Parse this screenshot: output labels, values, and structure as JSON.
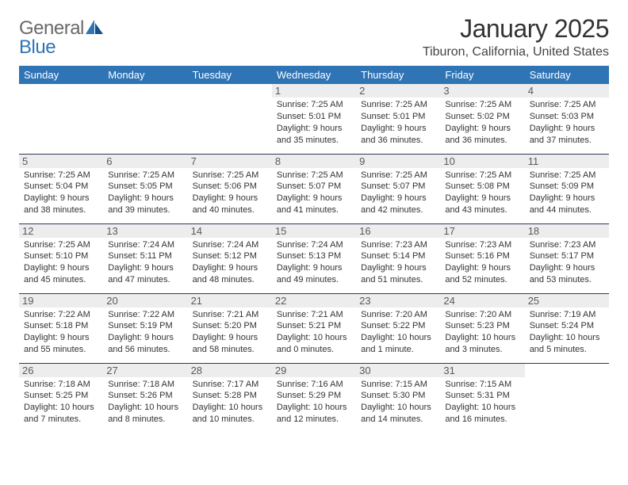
{
  "logo": {
    "word1": "General",
    "word2": "Blue"
  },
  "title": "January 2025",
  "location": "Tiburon, California, United States",
  "colors": {
    "header_bg": "#2f74b5",
    "header_text": "#ffffff",
    "day_bg": "#ededed",
    "rule": "#2f3a57",
    "logo_gray": "#6a6a6a",
    "logo_blue": "#2f74b5"
  },
  "typography": {
    "title_fontsize": 32,
    "location_fontsize": 16,
    "header_fontsize": 13,
    "body_fontsize": 11,
    "daynum_fontsize": 13
  },
  "days": [
    "Sunday",
    "Monday",
    "Tuesday",
    "Wednesday",
    "Thursday",
    "Friday",
    "Saturday"
  ],
  "cells": [
    [
      null,
      null,
      null,
      {
        "n": "1",
        "sr": "7:25 AM",
        "ss": "5:01 PM",
        "dl": "9 hours and 35 minutes."
      },
      {
        "n": "2",
        "sr": "7:25 AM",
        "ss": "5:01 PM",
        "dl": "9 hours and 36 minutes."
      },
      {
        "n": "3",
        "sr": "7:25 AM",
        "ss": "5:02 PM",
        "dl": "9 hours and 36 minutes."
      },
      {
        "n": "4",
        "sr": "7:25 AM",
        "ss": "5:03 PM",
        "dl": "9 hours and 37 minutes."
      }
    ],
    [
      {
        "n": "5",
        "sr": "7:25 AM",
        "ss": "5:04 PM",
        "dl": "9 hours and 38 minutes."
      },
      {
        "n": "6",
        "sr": "7:25 AM",
        "ss": "5:05 PM",
        "dl": "9 hours and 39 minutes."
      },
      {
        "n": "7",
        "sr": "7:25 AM",
        "ss": "5:06 PM",
        "dl": "9 hours and 40 minutes."
      },
      {
        "n": "8",
        "sr": "7:25 AM",
        "ss": "5:07 PM",
        "dl": "9 hours and 41 minutes."
      },
      {
        "n": "9",
        "sr": "7:25 AM",
        "ss": "5:07 PM",
        "dl": "9 hours and 42 minutes."
      },
      {
        "n": "10",
        "sr": "7:25 AM",
        "ss": "5:08 PM",
        "dl": "9 hours and 43 minutes."
      },
      {
        "n": "11",
        "sr": "7:25 AM",
        "ss": "5:09 PM",
        "dl": "9 hours and 44 minutes."
      }
    ],
    [
      {
        "n": "12",
        "sr": "7:25 AM",
        "ss": "5:10 PM",
        "dl": "9 hours and 45 minutes."
      },
      {
        "n": "13",
        "sr": "7:24 AM",
        "ss": "5:11 PM",
        "dl": "9 hours and 47 minutes."
      },
      {
        "n": "14",
        "sr": "7:24 AM",
        "ss": "5:12 PM",
        "dl": "9 hours and 48 minutes."
      },
      {
        "n": "15",
        "sr": "7:24 AM",
        "ss": "5:13 PM",
        "dl": "9 hours and 49 minutes."
      },
      {
        "n": "16",
        "sr": "7:23 AM",
        "ss": "5:14 PM",
        "dl": "9 hours and 51 minutes."
      },
      {
        "n": "17",
        "sr": "7:23 AM",
        "ss": "5:16 PM",
        "dl": "9 hours and 52 minutes."
      },
      {
        "n": "18",
        "sr": "7:23 AM",
        "ss": "5:17 PM",
        "dl": "9 hours and 53 minutes."
      }
    ],
    [
      {
        "n": "19",
        "sr": "7:22 AM",
        "ss": "5:18 PM",
        "dl": "9 hours and 55 minutes."
      },
      {
        "n": "20",
        "sr": "7:22 AM",
        "ss": "5:19 PM",
        "dl": "9 hours and 56 minutes."
      },
      {
        "n": "21",
        "sr": "7:21 AM",
        "ss": "5:20 PM",
        "dl": "9 hours and 58 minutes."
      },
      {
        "n": "22",
        "sr": "7:21 AM",
        "ss": "5:21 PM",
        "dl": "10 hours and 0 minutes."
      },
      {
        "n": "23",
        "sr": "7:20 AM",
        "ss": "5:22 PM",
        "dl": "10 hours and 1 minute."
      },
      {
        "n": "24",
        "sr": "7:20 AM",
        "ss": "5:23 PM",
        "dl": "10 hours and 3 minutes."
      },
      {
        "n": "25",
        "sr": "7:19 AM",
        "ss": "5:24 PM",
        "dl": "10 hours and 5 minutes."
      }
    ],
    [
      {
        "n": "26",
        "sr": "7:18 AM",
        "ss": "5:25 PM",
        "dl": "10 hours and 7 minutes."
      },
      {
        "n": "27",
        "sr": "7:18 AM",
        "ss": "5:26 PM",
        "dl": "10 hours and 8 minutes."
      },
      {
        "n": "28",
        "sr": "7:17 AM",
        "ss": "5:28 PM",
        "dl": "10 hours and 10 minutes."
      },
      {
        "n": "29",
        "sr": "7:16 AM",
        "ss": "5:29 PM",
        "dl": "10 hours and 12 minutes."
      },
      {
        "n": "30",
        "sr": "7:15 AM",
        "ss": "5:30 PM",
        "dl": "10 hours and 14 minutes."
      },
      {
        "n": "31",
        "sr": "7:15 AM",
        "ss": "5:31 PM",
        "dl": "10 hours and 16 minutes."
      },
      null
    ]
  ],
  "labels": {
    "sunrise": "Sunrise:",
    "sunset": "Sunset:",
    "daylight": "Daylight:"
  }
}
